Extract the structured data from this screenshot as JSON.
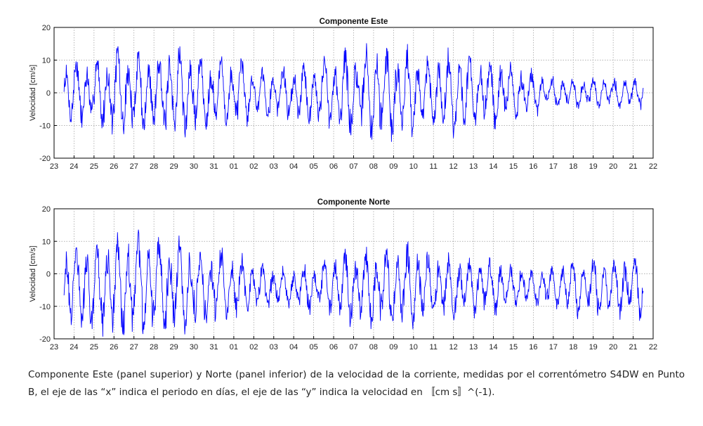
{
  "chart_data": [
    {
      "type": "line",
      "title": "Componente Este",
      "xlabel": "",
      "ylabel": "Velocidad [cm/s]",
      "xlim": [
        23,
        22
      ],
      "ylim": [
        -20,
        20
      ],
      "xtick_labels": [
        "23",
        "24",
        "25",
        "26",
        "27",
        "28",
        "29",
        "30",
        "31",
        "01",
        "02",
        "03",
        "04",
        "05",
        "06",
        "07",
        "08",
        "09",
        "10",
        "11",
        "12",
        "13",
        "14",
        "15",
        "16",
        "17",
        "18",
        "19",
        "20",
        "21",
        "22"
      ],
      "ytick_labels": [
        "20",
        "10",
        "0",
        "-10",
        "-20"
      ],
      "yticks": [
        20,
        10,
        0,
        -10,
        -20
      ],
      "grid": true,
      "series": [
        {
          "color": "#0000ff",
          "x_start_index": 0.5,
          "x_end_index": 29.5,
          "envelope": [
            {
              "x": 0.5,
              "y": 12
            },
            {
              "x": 1.5,
              "y": 11
            },
            {
              "x": 2.5,
              "y": 13
            },
            {
              "x": 3.5,
              "y": 15
            },
            {
              "x": 4.5,
              "y": 14
            },
            {
              "x": 5.5,
              "y": 14
            },
            {
              "x": 6.5,
              "y": 15
            },
            {
              "x": 7.5,
              "y": 12
            },
            {
              "x": 8.5,
              "y": 12
            },
            {
              "x": 9.5,
              "y": 10
            },
            {
              "x": 10.5,
              "y": 8
            },
            {
              "x": 11.5,
              "y": 9
            },
            {
              "x": 12.5,
              "y": 10
            },
            {
              "x": 13.5,
              "y": 12
            },
            {
              "x": 14.5,
              "y": 14
            },
            {
              "x": 15.5,
              "y": 15
            },
            {
              "x": 16.5,
              "y": 16
            },
            {
              "x": 17.5,
              "y": 14
            },
            {
              "x": 18.5,
              "y": 12
            },
            {
              "x": 19.5,
              "y": 13
            },
            {
              "x": 20.5,
              "y": 14
            },
            {
              "x": 21.5,
              "y": 12
            },
            {
              "x": 22.5,
              "y": 11
            },
            {
              "x": 23.5,
              "y": 9
            },
            {
              "x": 24.5,
              "y": 6
            },
            {
              "x": 25.5,
              "y": 5
            },
            {
              "x": 26.5,
              "y": 5
            },
            {
              "x": 27.5,
              "y": 5
            },
            {
              "x": 28.5,
              "y": 5
            },
            {
              "x": 29.5,
              "y": 5
            }
          ],
          "mean": 0
        }
      ]
    },
    {
      "type": "line",
      "title": "Componente Norte",
      "xlabel": "",
      "ylabel": "Velocidad [cm/s]",
      "xlim": [
        23,
        22
      ],
      "ylim": [
        -20,
        20
      ],
      "xtick_labels": [
        "23",
        "24",
        "25",
        "26",
        "27",
        "28",
        "29",
        "30",
        "31",
        "01",
        "02",
        "03",
        "04",
        "05",
        "06",
        "07",
        "08",
        "09",
        "10",
        "11",
        "12",
        "13",
        "14",
        "15",
        "16",
        "17",
        "18",
        "19",
        "20",
        "21",
        "22"
      ],
      "ytick_labels": [
        "20",
        "10",
        "0",
        "-10",
        "-20"
      ],
      "yticks": [
        20,
        10,
        0,
        -10,
        -20
      ],
      "grid": true,
      "series": [
        {
          "color": "#0000ff",
          "x_start_index": 0.5,
          "x_end_index": 29.5,
          "envelope": [
            {
              "x": 0.5,
              "y": 14
            },
            {
              "x": 1.5,
              "y": 15
            },
            {
              "x": 2.5,
              "y": 16
            },
            {
              "x": 3.5,
              "y": 17
            },
            {
              "x": 4.5,
              "y": 17
            },
            {
              "x": 5.5,
              "y": 16
            },
            {
              "x": 6.5,
              "y": 15
            },
            {
              "x": 7.5,
              "y": 14
            },
            {
              "x": 8.5,
              "y": 12
            },
            {
              "x": 9.5,
              "y": 10
            },
            {
              "x": 10.5,
              "y": 7
            },
            {
              "x": 11.5,
              "y": 6
            },
            {
              "x": 12.5,
              "y": 8
            },
            {
              "x": 13.5,
              "y": 10
            },
            {
              "x": 14.5,
              "y": 12
            },
            {
              "x": 15.5,
              "y": 13
            },
            {
              "x": 16.5,
              "y": 14
            },
            {
              "x": 17.5,
              "y": 14
            },
            {
              "x": 18.5,
              "y": 13
            },
            {
              "x": 19.5,
              "y": 11
            },
            {
              "x": 20.5,
              "y": 10
            },
            {
              "x": 21.5,
              "y": 9
            },
            {
              "x": 22.5,
              "y": 8
            },
            {
              "x": 23.5,
              "y": 7
            },
            {
              "x": 24.5,
              "y": 6
            },
            {
              "x": 25.5,
              "y": 8
            },
            {
              "x": 26.5,
              "y": 10
            },
            {
              "x": 27.5,
              "y": 10
            },
            {
              "x": 28.5,
              "y": 11
            },
            {
              "x": 29.5,
              "y": 10
            }
          ],
          "mean": -4
        }
      ]
    }
  ],
  "caption": "Componente Este (panel superior) y Norte (panel inferior) de la velocidad de la corriente, medidas por el correntómetro S4DW en Punto B, el eje de las “x” indica el periodo en días, el eje de las “y” indica la velocidad en 〚cm s〛^(-1)."
}
